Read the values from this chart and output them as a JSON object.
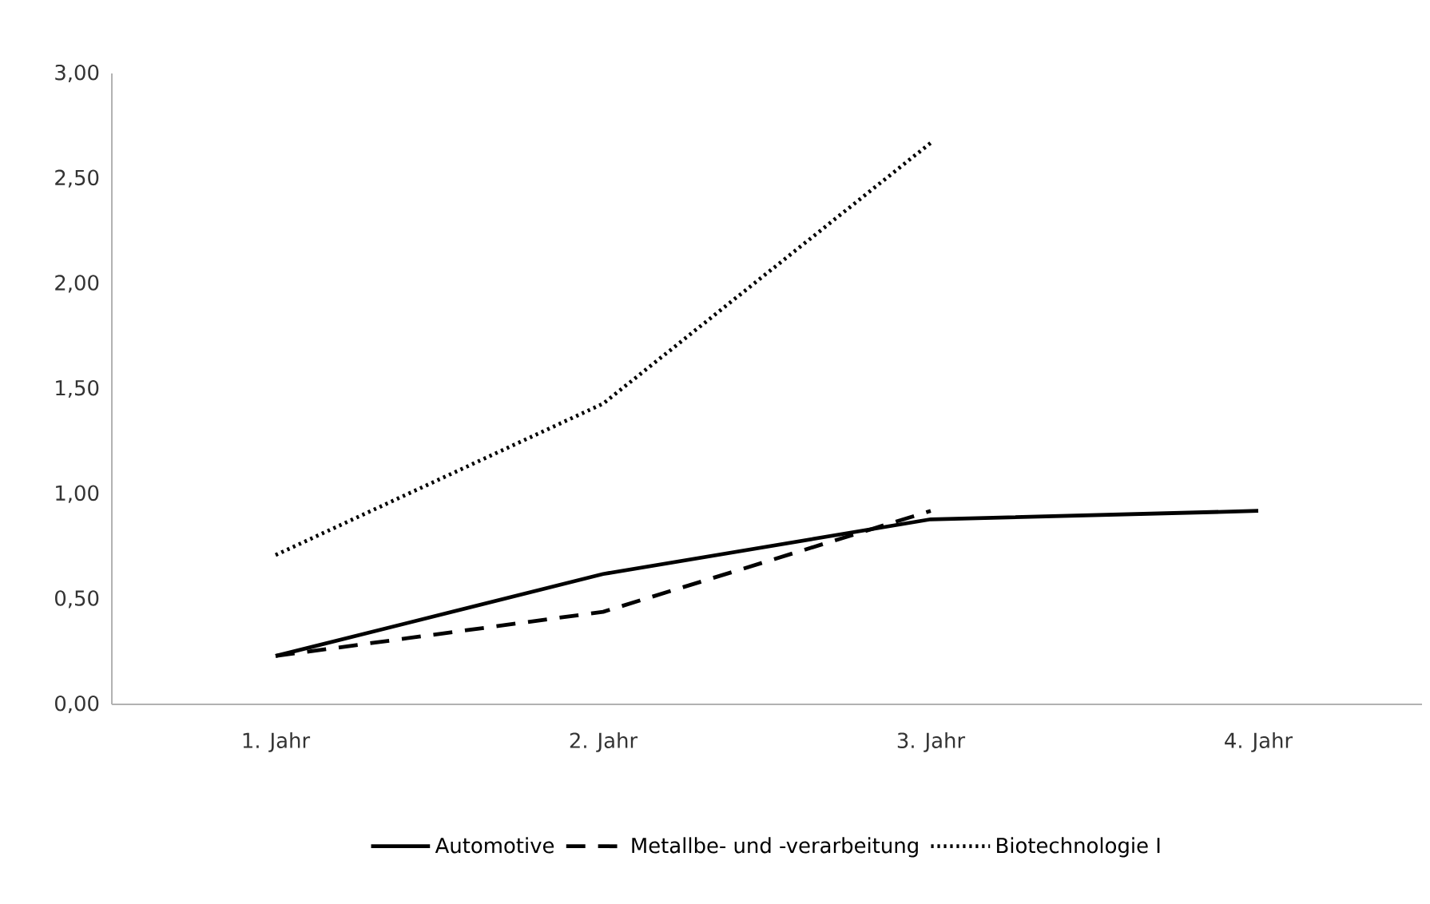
{
  "chart_data": {
    "type": "line",
    "categories": [
      "1. Jahr",
      "2. Jahr",
      "3. Jahr",
      "4. Jahr"
    ],
    "series": [
      {
        "name": "Automotive",
        "color": "#000000",
        "line_style": "solid",
        "values": [
          0.23,
          0.62,
          0.88,
          0.92
        ]
      },
      {
        "name": "Metallbe- und -verarbeitung",
        "color": "#000000",
        "line_style": "dashed",
        "values": [
          0.23,
          0.44,
          0.92,
          null
        ]
      },
      {
        "name": "Biotechnologie I",
        "color": "#000000",
        "line_style": "dotted",
        "values": [
          0.71,
          1.43,
          2.67,
          null
        ]
      }
    ],
    "ylim": [
      0,
      3
    ],
    "yticks": [
      {
        "value": 0,
        "label": "0,00"
      },
      {
        "value": 0.5,
        "label": "0,50"
      },
      {
        "value": 1,
        "label": "1,00"
      },
      {
        "value": 1.5,
        "label": "1,50"
      },
      {
        "value": 2,
        "label": "2,00"
      },
      {
        "value": 2.5,
        "label": "2,50"
      },
      {
        "value": 3,
        "label": "3,00"
      }
    ],
    "grid": false,
    "legend": "bottom",
    "marker": "none"
  }
}
